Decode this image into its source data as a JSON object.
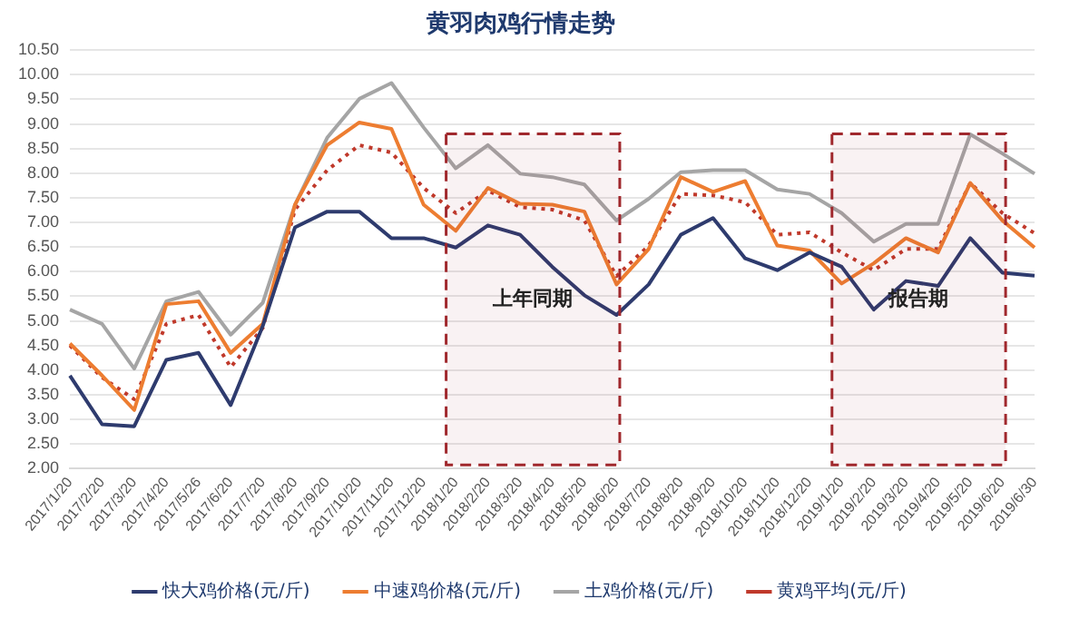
{
  "chart_data": {
    "type": "line",
    "title": "黄羽肉鸡行情走势",
    "categories": [
      "2017/1/20",
      "2017/2/20",
      "2017/3/20",
      "2017/4/20",
      "2017/5/26",
      "2017/6/20",
      "2017/7/20",
      "2017/8/20",
      "2017/9/20",
      "2017/10/20",
      "2017/11/20",
      "2017/12/20",
      "2018/1/20",
      "2018/2/20",
      "2018/3/20",
      "2018/4/20",
      "2018/5/20",
      "2018/6/20",
      "2018/7/20",
      "2018/8/20",
      "2018/9/20",
      "2018/10/20",
      "2018/11/20",
      "2018/12/20",
      "2019/1/20",
      "2019/2/20",
      "2019/3/20",
      "2019/4/20",
      "2019/5/20",
      "2019/6/20",
      "2019/6/30"
    ],
    "series": [
      {
        "name": "快大鸡价格(元/斤)",
        "color": "#2e3b6e",
        "values": [
          3.89,
          2.9,
          2.86,
          4.21,
          4.35,
          3.29,
          4.9,
          6.9,
          7.22,
          7.22,
          6.68,
          6.68,
          6.49,
          6.94,
          6.75,
          6.1,
          5.52,
          5.12,
          5.74,
          6.75,
          7.09,
          6.27,
          6.03,
          6.39,
          6.1,
          5.23,
          5.81,
          5.71,
          6.68,
          5.98,
          5.92
        ]
      },
      {
        "name": "中速鸡价格(元/斤)",
        "color": "#ed7d31",
        "values": [
          4.54,
          3.89,
          3.19,
          5.34,
          5.4,
          4.35,
          4.94,
          7.36,
          8.57,
          9.03,
          8.9,
          7.36,
          6.83,
          7.7,
          7.38,
          7.36,
          7.22,
          5.74,
          6.46,
          7.92,
          7.62,
          7.84,
          6.53,
          6.43,
          5.76,
          6.17,
          6.68,
          6.39,
          7.8,
          7.04,
          6.49
        ]
      },
      {
        "name": "土鸡价格(元/斤)",
        "color": "#a5a5a5",
        "values": [
          5.23,
          4.94,
          4.03,
          5.4,
          5.59,
          4.72,
          5.37,
          7.36,
          8.72,
          9.51,
          9.83,
          8.93,
          8.1,
          8.57,
          7.99,
          7.92,
          7.77,
          7.04,
          7.48,
          8.02,
          8.06,
          8.06,
          7.67,
          7.58,
          7.19,
          6.61,
          6.97,
          6.97,
          8.79,
          8.4,
          7.99
        ]
      },
      {
        "name": "黄鸡平均(元/斤)",
        "color": "#c0392b",
        "line_style": "dotted",
        "values": [
          4.5,
          3.85,
          3.41,
          4.94,
          5.12,
          4.06,
          4.86,
          7.26,
          8.06,
          8.57,
          8.42,
          7.7,
          7.19,
          7.65,
          7.31,
          7.26,
          7.04,
          5.91,
          6.53,
          7.58,
          7.55,
          7.41,
          6.75,
          6.8,
          6.39,
          6.03,
          6.46,
          6.46,
          7.8,
          7.19,
          6.78
        ]
      }
    ],
    "ylim": [
      2,
      10.5
    ],
    "yticks": [
      {
        "value": 2,
        "label": "2.00"
      },
      {
        "value": 2.5,
        "label": "2.50"
      },
      {
        "value": 3,
        "label": "3.00"
      },
      {
        "value": 3.5,
        "label": "3.50"
      },
      {
        "value": 4,
        "label": "4.00"
      },
      {
        "value": 4.5,
        "label": "4.50"
      },
      {
        "value": 5,
        "label": "5.00"
      },
      {
        "value": 5.5,
        "label": "5.50"
      },
      {
        "value": 6,
        "label": "6.00"
      },
      {
        "value": 6.5,
        "label": "6.50"
      },
      {
        "value": 7,
        "label": "7.00"
      },
      {
        "value": 7.5,
        "label": "7.50"
      },
      {
        "value": 8,
        "label": "8.00"
      },
      {
        "value": 8.5,
        "label": "8.50"
      },
      {
        "value": 9,
        "label": "9.00"
      },
      {
        "value": 9.5,
        "label": "9.50"
      },
      {
        "value": 10,
        "label": "10.00"
      },
      {
        "value": 10.5,
        "label": "10.50"
      }
    ],
    "bands": [
      {
        "axis": "x",
        "from": "2018/1/20",
        "to": "2018/6/20",
        "label": "上年同期",
        "color": "#a0282d"
      },
      {
        "axis": "x",
        "from": "2019/1/20",
        "to": "2019/6/20",
        "label": "报告期",
        "color": "#a0282d"
      }
    ],
    "grid": "y",
    "legend": "bottom",
    "marker": "none",
    "line_style": "solid"
  }
}
